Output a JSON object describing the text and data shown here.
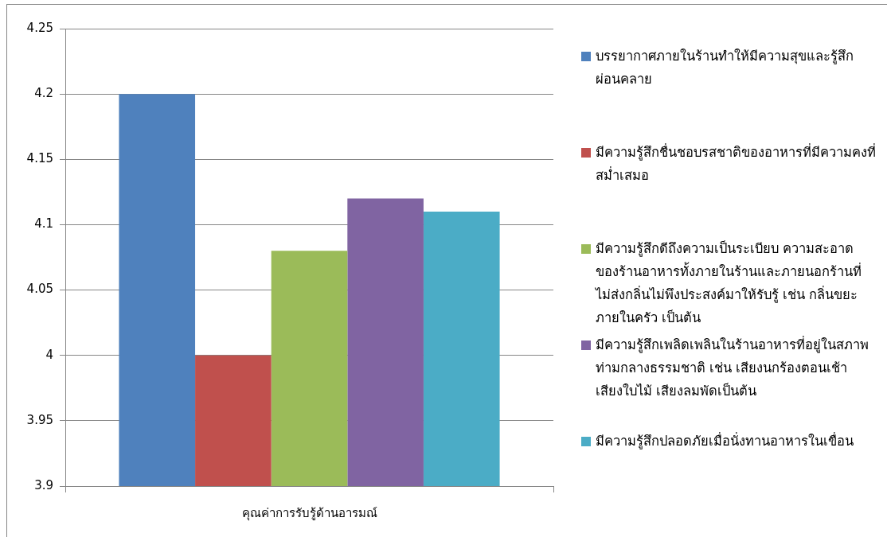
{
  "chart_data": {
    "type": "bar",
    "categories": [
      "คุณค่าการรับรู้ด้านอารมณ์"
    ],
    "series": [
      {
        "name": "บรรยากาศภายในร้านทำให้มีความสุขและรู้สึกผ่อนคลาย",
        "color": "#4f81bd",
        "values": [
          4.2
        ]
      },
      {
        "name": "มีความรู้สึกชื่นชอบรสชาติของอาหารที่มีความคงที่สม่ำเสมอ",
        "color": "#c0504d",
        "values": [
          4.0
        ]
      },
      {
        "name": "มีความรู้สึกดีถึงความเป็นระเบียบ ความสะอาดของร้านอาหารทั้งภายในร้านและภายนอกร้านที่ไม่ส่งกลิ่นไม่พึงประสงค์มาให้รับรู้ เช่น กลิ่นขยะภายในครัว เป็นต้น",
        "color": "#9bbb59",
        "values": [
          4.08
        ]
      },
      {
        "name": "มีความรู้สึกเพลิดเพลินในร้านอาหารที่อยู่ในสภาพท่ามกลางธรรมชาติ เช่น เสียงนกร้องตอนเช้า เสียงใบไม้ เสียงลมพัดเป็นต้น",
        "color": "#8064a2",
        "values": [
          4.12
        ]
      },
      {
        "name": "มีความรู้สึกปลอดภัยเมื่อนั่งทานอาหารในเขื่อน",
        "color": "#4bacc6",
        "values": [
          4.11
        ]
      }
    ],
    "ylim": [
      3.9,
      4.25
    ],
    "yticks": [
      3.9,
      3.95,
      4,
      4.05,
      4.1,
      4.15,
      4.2,
      4.25
    ],
    "grid": "y",
    "legend": "right"
  }
}
